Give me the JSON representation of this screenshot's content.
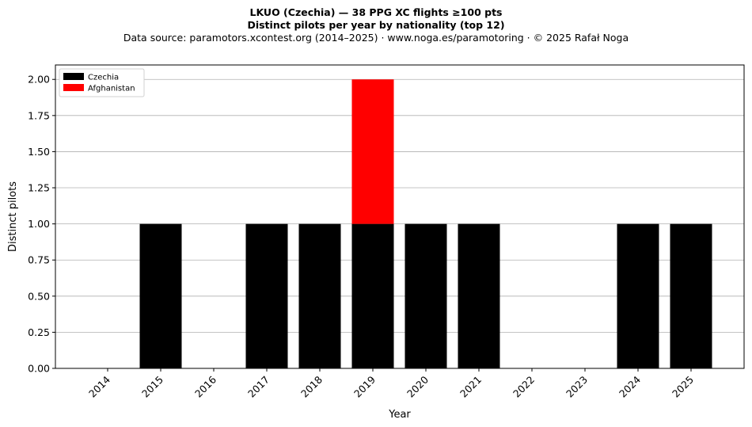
{
  "chart_data": {
    "type": "bar",
    "stacked": true,
    "title": "LKUO (Czechia)  —  38 PPG XC flights ≥100 pts",
    "subtitle": "Distinct pilots per year by nationality (top 12)",
    "source_line": "Data source: paramotors.xcontest.org (2014–2025)  ·  www.noga.es/paramotoring  ·  © 2025 Rafał Noga",
    "xlabel": "Year",
    "ylabel": "Distinct pilots",
    "categories": [
      "2014",
      "2015",
      "2016",
      "2017",
      "2018",
      "2019",
      "2020",
      "2021",
      "2022",
      "2023",
      "2024",
      "2025"
    ],
    "series": [
      {
        "name": "Czechia",
        "color": "#000000",
        "values": [
          0,
          1,
          0,
          1,
          1,
          1,
          1,
          1,
          0,
          0,
          1,
          1
        ]
      },
      {
        "name": "Afghanistan",
        "color": "#ff0000",
        "values": [
          0,
          0,
          0,
          0,
          0,
          1,
          0,
          0,
          0,
          0,
          0,
          0
        ]
      }
    ],
    "ylim": [
      0,
      2.1
    ],
    "yticks": [
      "0.00",
      "0.25",
      "0.50",
      "0.75",
      "1.00",
      "1.25",
      "1.50",
      "1.75",
      "2.00"
    ],
    "grid": "horizontal",
    "legend_position": "top-left"
  }
}
